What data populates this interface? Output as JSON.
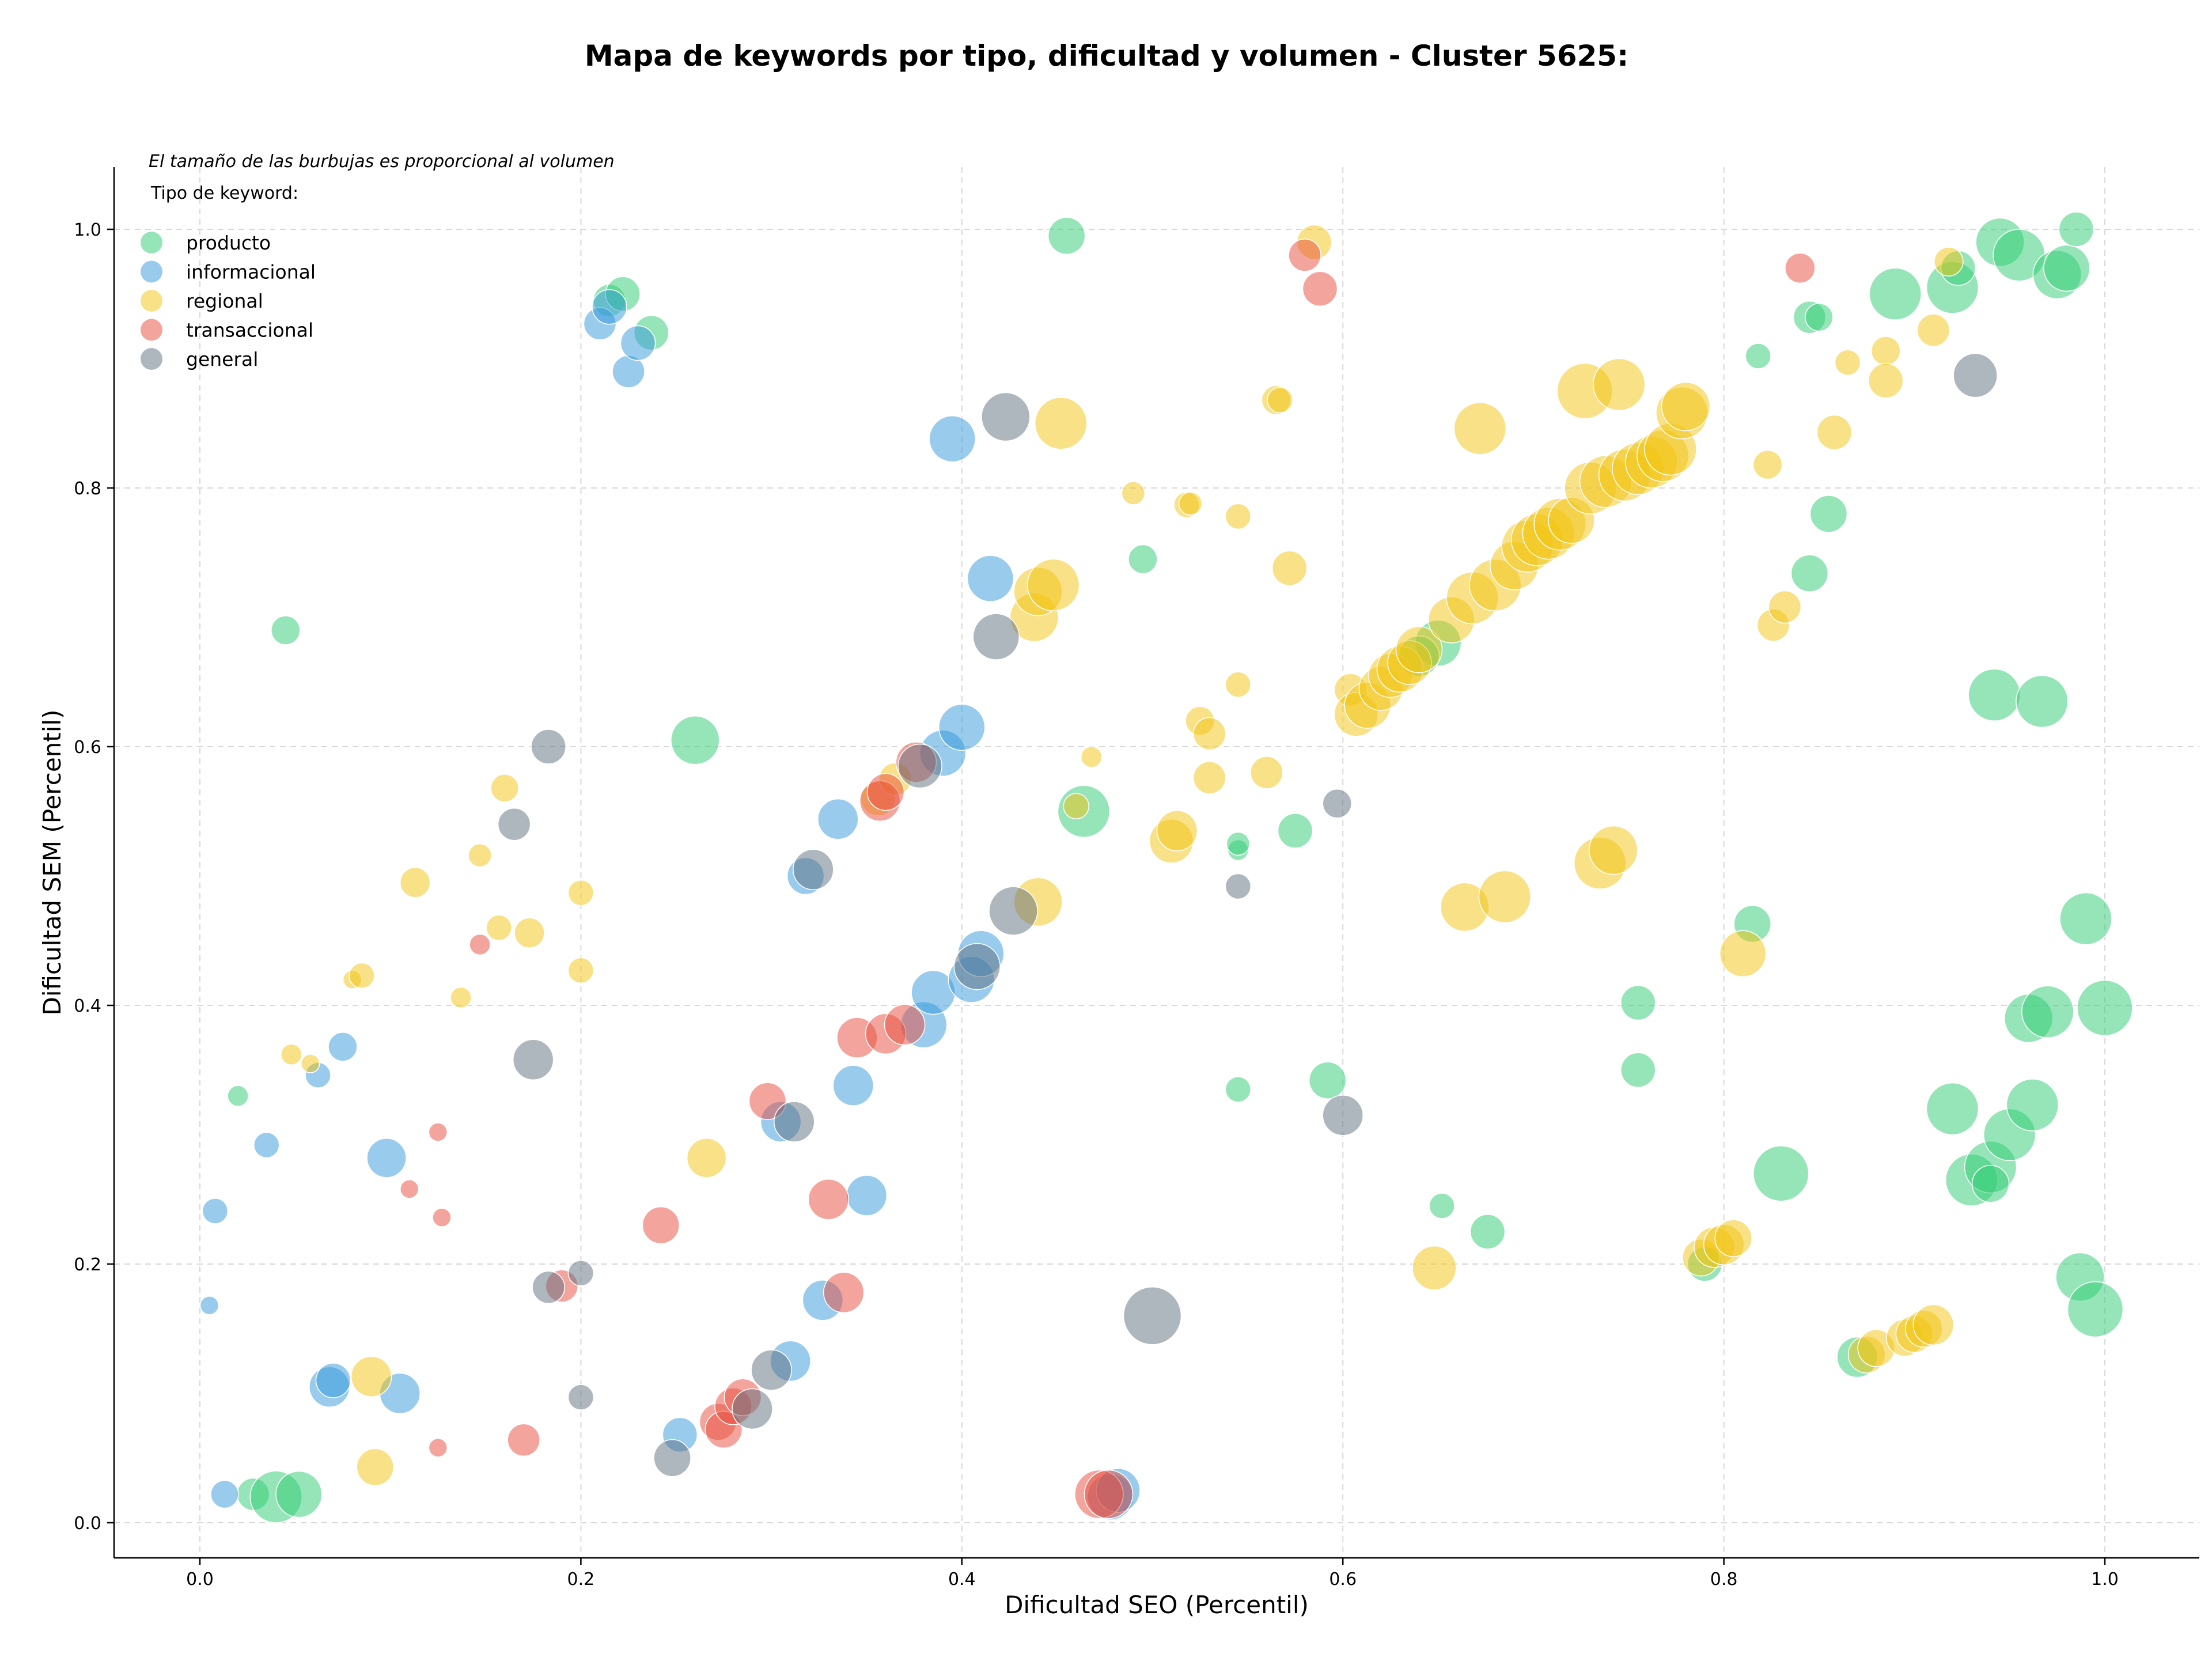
{
  "chart_data": {
    "type": "scatter",
    "title": "Mapa de keywords por tipo, dificultad y volumen - Cluster 5625:",
    "xlabel": "Dificultad SEO (Percentil)",
    "ylabel": "Dificultad SEM (Percentil)",
    "xlim": [
      -0.045,
      1.05
    ],
    "ylim": [
      -0.025,
      1.05
    ],
    "xticks": [
      "0.0",
      "0.2",
      "0.4",
      "0.6",
      "0.8",
      "1.0"
    ],
    "yticks": [
      "0.0",
      "0.2",
      "0.4",
      "0.6",
      "0.8",
      "1.0"
    ],
    "grid": true,
    "note": "El tamaño de las burbujas es proporcional al volumen",
    "legend": {
      "title": "Tipo de keyword:",
      "placement": "top-left"
    },
    "series": [
      {
        "name": "producto",
        "color": "#2ecc71",
        "points": [
          [
            0.045,
            0.69,
            25
          ],
          [
            0.02,
            0.33,
            18
          ],
          [
            0.028,
            0.022,
            28
          ],
          [
            0.04,
            0.02,
            45
          ],
          [
            0.052,
            0.022,
            40
          ],
          [
            0.215,
            0.945,
            28
          ],
          [
            0.222,
            0.95,
            30
          ],
          [
            0.237,
            0.92,
            30
          ],
          [
            0.26,
            0.605,
            42
          ],
          [
            0.455,
            0.995,
            32
          ],
          [
            0.464,
            0.55,
            45
          ],
          [
            0.495,
            0.745,
            25
          ],
          [
            0.545,
            0.52,
            18
          ],
          [
            0.545,
            0.525,
            20
          ],
          [
            0.545,
            0.335,
            22
          ],
          [
            0.575,
            0.535,
            30
          ],
          [
            0.592,
            0.342,
            32
          ],
          [
            0.65,
            0.68,
            40
          ],
          [
            0.64,
            0.67,
            35
          ],
          [
            0.652,
            0.245,
            22
          ],
          [
            0.676,
            0.225,
            30
          ],
          [
            0.755,
            0.402,
            30
          ],
          [
            0.755,
            0.35,
            30
          ],
          [
            0.815,
            0.463,
            32
          ],
          [
            0.818,
            0.902,
            22
          ],
          [
            0.83,
            0.27,
            48
          ],
          [
            0.845,
            0.932,
            28
          ],
          [
            0.85,
            0.932,
            24
          ],
          [
            0.845,
            0.734,
            32
          ],
          [
            0.855,
            0.78,
            32
          ],
          [
            0.87,
            0.128,
            35
          ],
          [
            0.89,
            0.95,
            45
          ],
          [
            0.92,
            0.955,
            45
          ],
          [
            0.923,
            0.97,
            30
          ],
          [
            0.945,
            0.99,
            42
          ],
          [
            0.955,
            0.98,
            45
          ],
          [
            0.975,
            0.965,
            42
          ],
          [
            0.98,
            0.97,
            40
          ],
          [
            0.985,
            1.0,
            30
          ],
          [
            0.942,
            0.64,
            45
          ],
          [
            0.967,
            0.635,
            45
          ],
          [
            0.92,
            0.32,
            45
          ],
          [
            0.93,
            0.265,
            45
          ],
          [
            0.94,
            0.275,
            45
          ],
          [
            0.95,
            0.3,
            45
          ],
          [
            0.94,
            0.262,
            32
          ],
          [
            0.96,
            0.39,
            42
          ],
          [
            0.97,
            0.395,
            45
          ],
          [
            0.962,
            0.323,
            45
          ],
          [
            0.99,
            0.467,
            45
          ],
          [
            1.0,
            0.398,
            48
          ],
          [
            0.987,
            0.19,
            42
          ],
          [
            0.995,
            0.165,
            48
          ],
          [
            0.79,
            0.2,
            30
          ]
        ]
      },
      {
        "name": "informacional",
        "color": "#3498db",
        "points": [
          [
            0.005,
            0.168,
            16
          ],
          [
            0.008,
            0.241,
            22
          ],
          [
            0.013,
            0.022,
            24
          ],
          [
            0.035,
            0.292,
            22
          ],
          [
            0.062,
            0.346,
            22
          ],
          [
            0.075,
            0.368,
            25
          ],
          [
            0.068,
            0.105,
            35
          ],
          [
            0.07,
            0.11,
            30
          ],
          [
            0.098,
            0.282,
            34
          ],
          [
            0.105,
            0.1,
            35
          ],
          [
            0.21,
            0.927,
            28
          ],
          [
            0.215,
            0.94,
            30
          ],
          [
            0.225,
            0.89,
            28
          ],
          [
            0.23,
            0.912,
            30
          ],
          [
            0.252,
            0.068,
            30
          ],
          [
            0.305,
            0.31,
            35
          ],
          [
            0.31,
            0.125,
            35
          ],
          [
            0.318,
            0.5,
            32
          ],
          [
            0.327,
            0.172,
            35
          ],
          [
            0.335,
            0.544,
            35
          ],
          [
            0.343,
            0.338,
            35
          ],
          [
            0.35,
            0.253,
            35
          ],
          [
            0.38,
            0.385,
            40
          ],
          [
            0.385,
            0.41,
            38
          ],
          [
            0.39,
            0.595,
            40
          ],
          [
            0.395,
            0.838,
            40
          ],
          [
            0.4,
            0.615,
            40
          ],
          [
            0.405,
            0.42,
            40
          ],
          [
            0.41,
            0.44,
            40
          ],
          [
            0.415,
            0.73,
            40
          ],
          [
            0.478,
            0.02,
            40
          ],
          [
            0.482,
            0.025,
            38
          ]
        ]
      },
      {
        "name": "regional",
        "color": "#f1c40f",
        "points": [
          [
            0.048,
            0.362,
            18
          ],
          [
            0.058,
            0.355,
            16
          ],
          [
            0.08,
            0.42,
            16
          ],
          [
            0.085,
            0.423,
            22
          ],
          [
            0.09,
            0.113,
            35
          ],
          [
            0.092,
            0.043,
            32
          ],
          [
            0.113,
            0.495,
            26
          ],
          [
            0.137,
            0.406,
            18
          ],
          [
            0.147,
            0.516,
            20
          ],
          [
            0.157,
            0.46,
            22
          ],
          [
            0.16,
            0.568,
            24
          ],
          [
            0.173,
            0.456,
            26
          ],
          [
            0.2,
            0.487,
            22
          ],
          [
            0.2,
            0.427,
            22
          ],
          [
            0.266,
            0.282,
            34
          ],
          [
            0.356,
            0.56,
            30
          ],
          [
            0.365,
            0.575,
            28
          ],
          [
            0.438,
            0.7,
            42
          ],
          [
            0.44,
            0.72,
            42
          ],
          [
            0.448,
            0.725,
            45
          ],
          [
            0.44,
            0.48,
            42
          ],
          [
            0.452,
            0.85,
            45
          ],
          [
            0.468,
            0.592,
            18
          ],
          [
            0.46,
            0.554,
            22
          ],
          [
            0.49,
            0.796,
            20
          ],
          [
            0.51,
            0.527,
            38
          ],
          [
            0.513,
            0.535,
            35
          ],
          [
            0.518,
            0.787,
            22
          ],
          [
            0.52,
            0.788,
            20
          ],
          [
            0.525,
            0.62,
            25
          ],
          [
            0.53,
            0.61,
            28
          ],
          [
            0.53,
            0.576,
            28
          ],
          [
            0.545,
            0.778,
            22
          ],
          [
            0.545,
            0.648,
            22
          ],
          [
            0.56,
            0.58,
            28
          ],
          [
            0.565,
            0.868,
            25
          ],
          [
            0.567,
            0.868,
            22
          ],
          [
            0.572,
            0.738,
            30
          ],
          [
            0.585,
            0.99,
            30
          ],
          [
            0.604,
            0.644,
            28
          ],
          [
            0.607,
            0.625,
            38
          ],
          [
            0.613,
            0.632,
            40
          ],
          [
            0.62,
            0.645,
            38
          ],
          [
            0.625,
            0.655,
            38
          ],
          [
            0.63,
            0.66,
            40
          ],
          [
            0.635,
            0.665,
            38
          ],
          [
            0.64,
            0.675,
            40
          ],
          [
            0.648,
            0.197,
            38
          ],
          [
            0.657,
            0.698,
            40
          ],
          [
            0.664,
            0.476,
            42
          ],
          [
            0.668,
            0.715,
            45
          ],
          [
            0.672,
            0.846,
            45
          ],
          [
            0.68,
            0.725,
            45
          ],
          [
            0.685,
            0.484,
            45
          ],
          [
            0.69,
            0.74,
            42
          ],
          [
            0.697,
            0.755,
            45
          ],
          [
            0.702,
            0.76,
            45
          ],
          [
            0.708,
            0.765,
            45
          ],
          [
            0.714,
            0.772,
            45
          ],
          [
            0.72,
            0.775,
            40
          ],
          [
            0.727,
            0.875,
            48
          ],
          [
            0.73,
            0.8,
            45
          ],
          [
            0.735,
            0.51,
            45
          ],
          [
            0.738,
            0.805,
            45
          ],
          [
            0.742,
            0.52,
            42
          ],
          [
            0.745,
            0.88,
            45
          ],
          [
            0.748,
            0.81,
            45
          ],
          [
            0.755,
            0.815,
            45
          ],
          [
            0.762,
            0.82,
            45
          ],
          [
            0.768,
            0.825,
            45
          ],
          [
            0.772,
            0.83,
            45
          ],
          [
            0.778,
            0.858,
            45
          ],
          [
            0.78,
            0.863,
            42
          ],
          [
            0.788,
            0.205,
            32
          ],
          [
            0.795,
            0.213,
            35
          ],
          [
            0.8,
            0.215,
            35
          ],
          [
            0.805,
            0.22,
            32
          ],
          [
            0.81,
            0.44,
            40
          ],
          [
            0.823,
            0.818,
            25
          ],
          [
            0.826,
            0.694,
            28
          ],
          [
            0.832,
            0.708,
            28
          ],
          [
            0.858,
            0.843,
            30
          ],
          [
            0.865,
            0.897,
            22
          ],
          [
            0.875,
            0.13,
            32
          ],
          [
            0.88,
            0.135,
            32
          ],
          [
            0.885,
            0.906,
            25
          ],
          [
            0.885,
            0.883,
            30
          ],
          [
            0.895,
            0.143,
            32
          ],
          [
            0.9,
            0.146,
            32
          ],
          [
            0.905,
            0.15,
            32
          ],
          [
            0.91,
            0.153,
            35
          ],
          [
            0.91,
            0.922,
            28
          ],
          [
            0.918,
            0.975,
            25
          ]
        ]
      },
      {
        "name": "transaccional",
        "color": "#e74c3c",
        "points": [
          [
            0.11,
            0.258,
            16
          ],
          [
            0.125,
            0.058,
            16
          ],
          [
            0.125,
            0.302,
            16
          ],
          [
            0.127,
            0.236,
            16
          ],
          [
            0.147,
            0.447,
            18
          ],
          [
            0.17,
            0.064,
            28
          ],
          [
            0.19,
            0.183,
            28
          ],
          [
            0.242,
            0.23,
            32
          ],
          [
            0.272,
            0.078,
            32
          ],
          [
            0.275,
            0.072,
            32
          ],
          [
            0.28,
            0.09,
            32
          ],
          [
            0.285,
            0.097,
            32
          ],
          [
            0.298,
            0.326,
            32
          ],
          [
            0.33,
            0.25,
            35
          ],
          [
            0.338,
            0.178,
            35
          ],
          [
            0.345,
            0.375,
            35
          ],
          [
            0.357,
            0.558,
            35
          ],
          [
            0.36,
            0.565,
            32
          ],
          [
            0.36,
            0.378,
            35
          ],
          [
            0.37,
            0.385,
            35
          ],
          [
            0.376,
            0.588,
            35
          ],
          [
            0.472,
            0.022,
            42
          ],
          [
            0.477,
            0.022,
            42
          ],
          [
            0.58,
            0.98,
            28
          ],
          [
            0.588,
            0.954,
            30
          ],
          [
            0.84,
            0.97,
            26
          ]
        ]
      },
      {
        "name": "general",
        "color": "#5d6d7e",
        "points": [
          [
            0.165,
            0.54,
            28
          ],
          [
            0.175,
            0.358,
            35
          ],
          [
            0.183,
            0.6,
            30
          ],
          [
            0.183,
            0.182,
            28
          ],
          [
            0.2,
            0.193,
            22
          ],
          [
            0.2,
            0.097,
            22
          ],
          [
            0.248,
            0.05,
            32
          ],
          [
            0.29,
            0.088,
            35
          ],
          [
            0.3,
            0.118,
            35
          ],
          [
            0.312,
            0.31,
            35
          ],
          [
            0.322,
            0.505,
            35
          ],
          [
            0.378,
            0.585,
            38
          ],
          [
            0.408,
            0.43,
            40
          ],
          [
            0.418,
            0.685,
            40
          ],
          [
            0.423,
            0.855,
            42
          ],
          [
            0.427,
            0.473,
            42
          ],
          [
            0.5,
            0.16,
            50
          ],
          [
            0.545,
            0.492,
            22
          ],
          [
            0.597,
            0.556,
            25
          ],
          [
            0.6,
            0.315,
            35
          ],
          [
            0.932,
            0.887,
            38
          ]
        ]
      }
    ]
  }
}
